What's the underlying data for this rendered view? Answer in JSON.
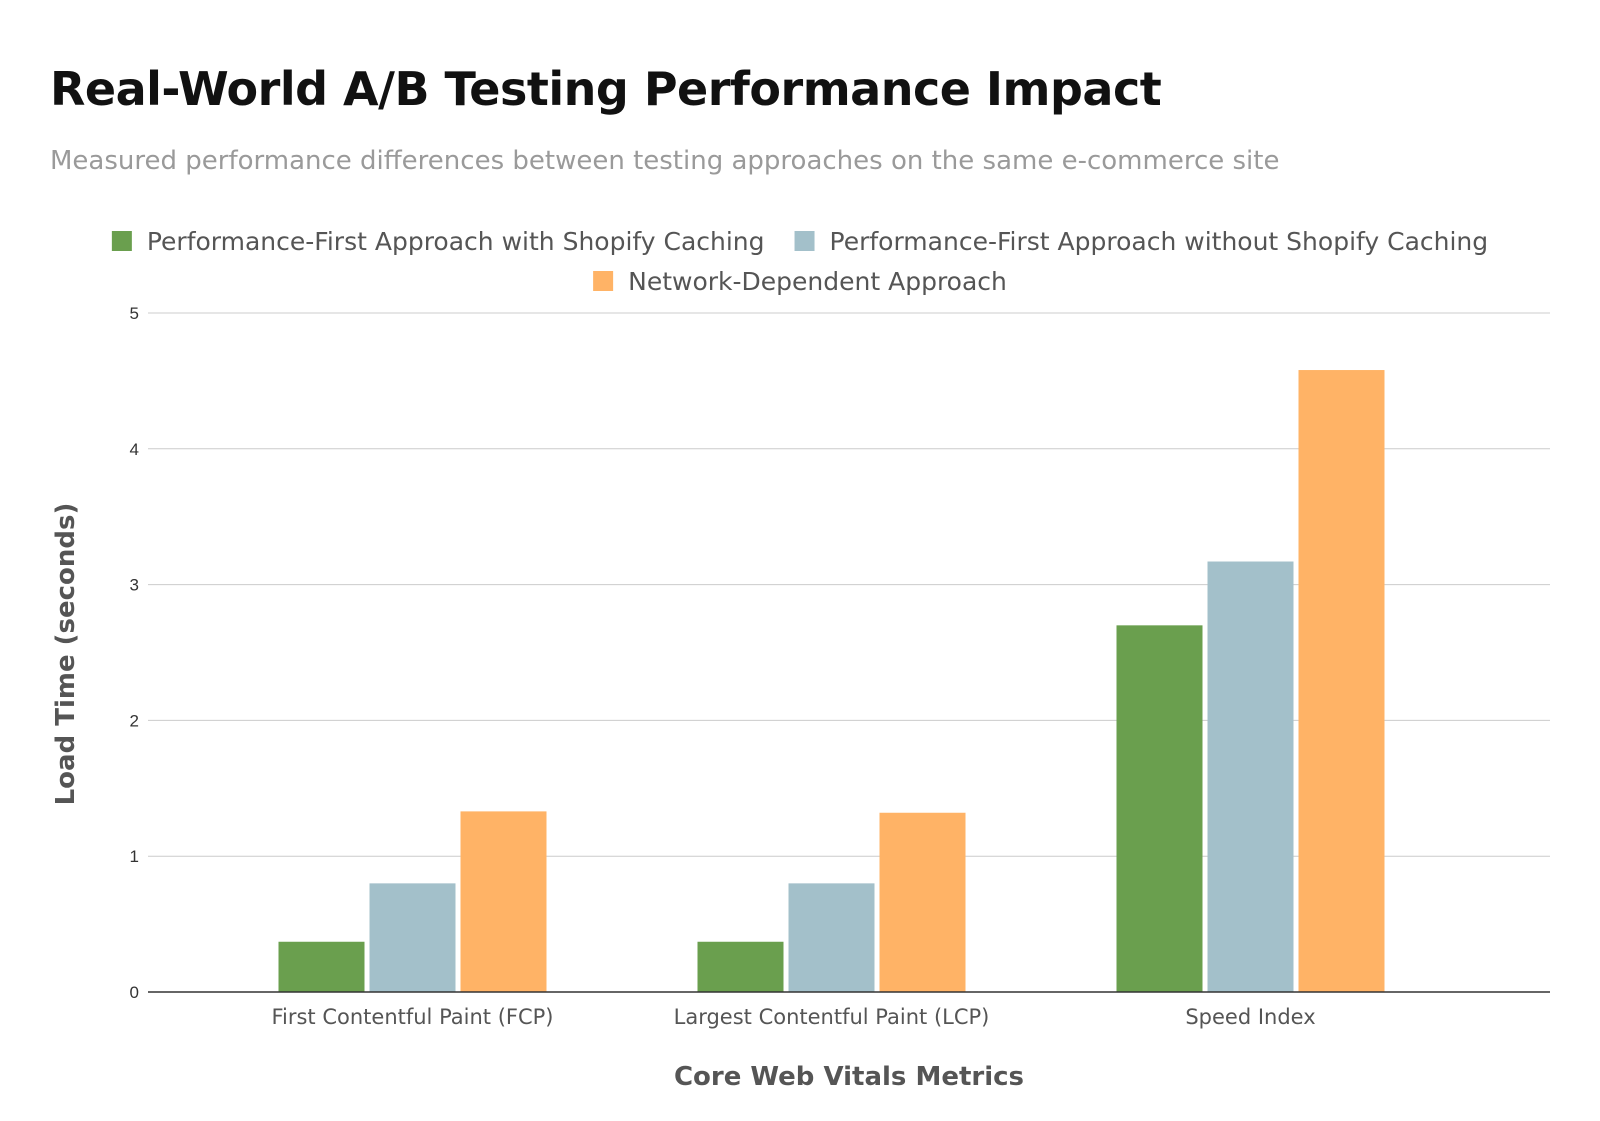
{
  "chart_data": {
    "type": "bar",
    "title": "Real-World A/B Testing Performance Impact",
    "subtitle": "Measured performance differences between testing approaches on the same e-commerce site",
    "xlabel": "Core Web Vitals Metrics",
    "ylabel": "Load Time (seconds)",
    "ylim": [
      0,
      5
    ],
    "yticks": [
      "0",
      "1",
      "2",
      "3",
      "4",
      "5"
    ],
    "grid": true,
    "legend_position": "top",
    "categories": [
      "First Contentful Paint (FCP)",
      "Largest Contentful Paint (LCP)",
      "Speed Index"
    ],
    "series": [
      {
        "name": "Performance-First Approach with Shopify Caching",
        "color": "#6a9f4e",
        "values": [
          0.37,
          0.37,
          2.7
        ]
      },
      {
        "name": "Performance-First Approach without Shopify Caching",
        "color": "#a3c0ca",
        "values": [
          0.8,
          0.8,
          3.17
        ]
      },
      {
        "name": "Network-Dependent Approach",
        "color": "#ffb366",
        "values": [
          1.33,
          1.32,
          4.58
        ]
      }
    ]
  }
}
